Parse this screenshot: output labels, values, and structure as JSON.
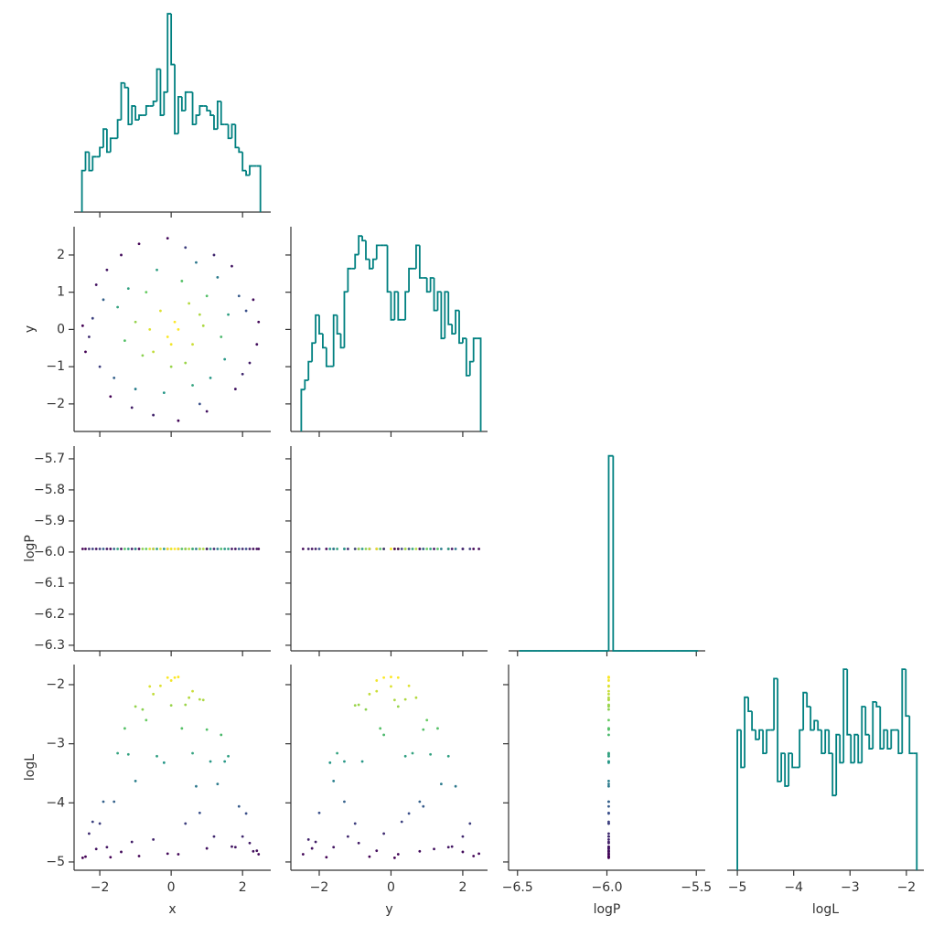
{
  "chart_data": {
    "type": "pairplot",
    "corner": true,
    "color": "#008080",
    "colormap": "viridis",
    "color_by": 3,
    "variables": [
      {
        "name": "x",
        "xlim": [
          -2.72,
          2.79
        ],
        "xticks": [
          {
            "value": -2,
            "label": "−2"
          },
          0,
          2
        ],
        "values": [
          0.1,
          -0.3,
          0.6,
          -0.8,
          1.0,
          -1.2,
          1.5,
          -1.6,
          2.1,
          -2.2,
          0.4,
          -0.5,
          2.4,
          -2.4,
          1.7,
          -1.8,
          1.8,
          -1.7,
          0,
          0.9,
          -1.0,
          0.3,
          1.3,
          -0.2,
          2.0,
          -1.4,
          0.8,
          -2.0,
          1.2,
          -0.9,
          2.45,
          -0.1,
          0.2,
          -2.48,
          0.5,
          -0.6,
          0,
          0.2,
          -0.1,
          1.1,
          -1.3,
          1.6,
          -0.4,
          0.7,
          -1.0,
          1.9,
          -1.9,
          0.6,
          -0.7,
          1.4,
          -1.5,
          2.2,
          -2.1,
          1.0,
          -1.1,
          0.4,
          -0.5,
          0.8,
          2.3,
          -2.3
        ],
        "hist": {
          "ylim": [
            0,
            44
          ],
          "bins": [
            -2.5,
            -2.4,
            -2.3,
            -2.2,
            -2.1,
            -2.0,
            -1.9,
            -1.8,
            -1.7,
            -1.6,
            -1.5,
            -1.4,
            -1.3,
            -1.2,
            -1.1,
            -1.0,
            -0.9,
            -0.8,
            -0.7,
            -0.6,
            -0.5,
            -0.4,
            -0.3,
            -0.2,
            -0.1,
            0,
            0.1,
            0.2,
            0.3,
            0.4,
            0.5,
            0.6,
            0.7,
            0.8,
            0.9,
            1.0,
            1.1,
            1.2,
            1.3,
            1.4,
            1.5,
            1.6,
            1.7,
            1.8,
            1.9,
            2.0,
            2.1,
            2.2,
            2.3,
            2.4,
            2.5
          ],
          "counts": [
            9,
            13,
            9,
            12,
            12,
            14,
            18,
            13,
            16,
            16,
            20,
            28,
            27,
            19,
            23,
            20,
            21,
            21,
            23,
            23,
            24,
            31,
            21,
            26,
            43,
            32,
            17,
            25,
            22,
            26,
            26,
            19,
            21,
            23,
            23,
            22,
            21,
            18,
            24,
            19,
            19,
            16,
            19,
            14,
            13,
            9,
            8,
            10,
            10,
            10
          ]
        }
      },
      {
        "name": "y",
        "xlim": [
          -2.79,
          2.69
        ],
        "xticks": [
          {
            "value": -2,
            "label": "−2"
          },
          0,
          2
        ],
        "ylim": [
          -2.74,
          2.76
        ],
        "yticks": [
          {
            "value": -2,
            "label": "−2"
          },
          {
            "value": -1,
            "label": "−1"
          },
          0,
          1,
          2
        ],
        "values": [
          0.2,
          0.5,
          -0.4,
          -0.7,
          0.9,
          1.1,
          -0.8,
          -1.3,
          0.5,
          0.3,
          2.2,
          -2.3,
          -0.4,
          -0.6,
          1.7,
          1.6,
          -1.6,
          -1.8,
          -1.0,
          0.1,
          0.2,
          1.3,
          1.4,
          -1.7,
          -1.2,
          2.0,
          -2.0,
          -1.0,
          2.0,
          2.3,
          0.2,
          2.45,
          -2.45,
          0.1,
          0.7,
          0,
          -0.4,
          0,
          -0.2,
          -1.3,
          -0.3,
          0.4,
          1.6,
          1.8,
          -1.6,
          0.9,
          0.8,
          -1.5,
          1.0,
          -0.2,
          0.6,
          -0.9,
          1.2,
          -2.2,
          -2.1,
          -0.9,
          -0.6,
          0.4,
          0.8,
          -0.2
        ],
        "hist": {
          "ylim": [
            0,
            44
          ],
          "bins": [
            -2.5,
            -2.4,
            -2.3,
            -2.2,
            -2.1,
            -2.0,
            -1.9,
            -1.8,
            -1.7,
            -1.6,
            -1.5,
            -1.4,
            -1.3,
            -1.2,
            -1.1,
            -1.0,
            -0.9,
            -0.8,
            -0.7,
            -0.6,
            -0.5,
            -0.4,
            -0.3,
            -0.2,
            -0.1,
            0,
            0.1,
            0.2,
            0.3,
            0.4,
            0.5,
            0.6,
            0.7,
            0.8,
            0.9,
            1.0,
            1.1,
            1.2,
            1.3,
            1.4,
            1.5,
            1.6,
            1.7,
            1.8,
            1.9,
            2.0,
            2.1,
            2.2,
            2.3,
            2.4,
            2.5
          ],
          "counts": [
            9,
            11,
            15,
            19,
            25,
            21,
            18,
            14,
            14,
            25,
            21,
            18,
            30,
            35,
            35,
            38,
            42,
            41,
            37,
            35,
            37,
            40,
            40,
            40,
            30,
            24,
            30,
            24,
            24,
            30,
            35,
            35,
            40,
            33,
            33,
            30,
            33,
            26,
            30,
            20,
            30,
            23,
            21,
            26,
            19,
            20,
            12,
            15,
            20,
            20
          ]
        }
      },
      {
        "name": "logP",
        "xlim": [
          -6.55,
          -5.45
        ],
        "xticks": [
          {
            "value": -6.5,
            "label": "−6.5"
          },
          {
            "value": -6.0,
            "label": "−6.0"
          },
          {
            "value": -5.5,
            "label": "−5.5"
          }
        ],
        "ylim": [
          -6.318,
          -5.659
        ],
        "yticks": [
          {
            "value": -5.7,
            "label": "−5.7"
          },
          {
            "value": -5.8,
            "label": "−5.8"
          },
          {
            "value": -5.9,
            "label": "−5.9"
          },
          {
            "value": -6.0,
            "label": "−6.0"
          },
          {
            "value": -6.1,
            "label": "−6.1"
          },
          {
            "value": -6.2,
            "label": "−6.2"
          },
          {
            "value": -6.3,
            "label": "−6.3"
          }
        ],
        "values": [
          -5.99,
          -5.99,
          -5.99,
          -5.99,
          -5.99,
          -5.99,
          -5.99,
          -5.99,
          -5.99,
          -5.99,
          -5.99,
          -5.99,
          -5.99,
          -5.99,
          -5.99,
          -5.99,
          -5.99,
          -5.99,
          -5.99,
          -5.99,
          -5.99,
          -5.99,
          -5.99,
          -5.99,
          -5.99,
          -5.99,
          -5.99,
          -5.99,
          -5.99,
          -5.99,
          -5.99,
          -5.99,
          -5.99,
          -5.99,
          -5.99,
          -5.99,
          -5.99,
          -5.99,
          -5.99,
          -5.99,
          -5.99,
          -5.99,
          -5.99,
          -5.99,
          -5.99,
          -5.99,
          -5.99,
          -5.99,
          -5.99,
          -5.99,
          -5.99,
          -5.99,
          -5.99,
          -5.99,
          -5.99,
          -5.99,
          -5.99,
          -5.99,
          -5.99,
          -5.99
        ],
        "hist": {
          "ylim": [
            0,
            1050
          ],
          "bins": [
            -6.49,
            -6.465,
            -6.44,
            -6.415,
            -6.39,
            -6.365,
            -6.34,
            -6.315,
            -6.29,
            -6.265,
            -6.24,
            -6.215,
            -6.19,
            -6.165,
            -6.14,
            -6.115,
            -6.09,
            -6.065,
            -6.04,
            -6.015,
            -5.99,
            -5.965,
            -5.94,
            -5.915,
            -5.89,
            -5.865,
            -5.84,
            -5.815,
            -5.79,
            -5.765,
            -5.74,
            -5.715,
            -5.69,
            -5.665,
            -5.64,
            -5.615,
            -5.59,
            -5.565,
            -5.54,
            -5.515,
            -5.49
          ],
          "counts": [
            0,
            0,
            0,
            0,
            0,
            0,
            0,
            0,
            0,
            0,
            0,
            0,
            0,
            0,
            0,
            0,
            0,
            0,
            0,
            0,
            1000,
            0,
            0,
            0,
            0,
            0,
            0,
            0,
            0,
            0,
            0,
            0,
            0,
            0,
            0,
            0,
            0,
            0,
            0,
            0
          ]
        }
      },
      {
        "name": "logL",
        "xlim": [
          -5.18,
          -1.69
        ],
        "xticks": [
          {
            "value": -5,
            "label": "−5"
          },
          {
            "value": -4,
            "label": "−4"
          },
          {
            "value": -3,
            "label": "−3"
          },
          {
            "value": -2,
            "label": "−2"
          }
        ],
        "ylim": [
          -5.14,
          -1.66
        ],
        "yticks": [
          {
            "value": -2,
            "label": "−2"
          },
          {
            "value": -3,
            "label": "−3"
          },
          {
            "value": -4,
            "label": "−4"
          },
          {
            "value": -5,
            "label": "−5"
          }
        ],
        "values": [
          -1.88,
          -2.02,
          -2.11,
          -2.42,
          -2.76,
          -3.18,
          -3.3,
          -3.98,
          -4.18,
          -4.32,
          -4.35,
          -4.62,
          -4.81,
          -4.91,
          -4.74,
          -4.75,
          -4.75,
          -4.92,
          -2.35,
          -2.26,
          -2.37,
          -2.74,
          -3.68,
          -3.32,
          -4.57,
          -4.83,
          -4.17,
          -4.35,
          -4.57,
          -4.9,
          -4.87,
          -4.86,
          -4.87,
          -4.93,
          -2.22,
          -2.03,
          -1.93,
          -1.87,
          -1.88,
          -3.3,
          -2.74,
          -3.21,
          -3.21,
          -3.72,
          -3.63,
          -4.06,
          -3.98,
          -3.16,
          -2.6,
          -2.85,
          -3.16,
          -4.68,
          -4.78,
          -4.77,
          -4.66,
          -2.34,
          -2.16,
          -2.25,
          -4.82,
          -4.52
        ],
        "hist": {
          "ylim": [
            0,
            44
          ],
          "bins": [
            -5,
            -4.935,
            -4.87,
            -4.805,
            -4.74,
            -4.675,
            -4.61,
            -4.545,
            -4.48,
            -4.415,
            -4.35,
            -4.285,
            -4.22,
            -4.155,
            -4.09,
            -4.025,
            -3.96,
            -3.895,
            -3.83,
            -3.765,
            -3.7,
            -3.635,
            -3.57,
            -3.505,
            -3.44,
            -3.375,
            -3.31,
            -3.245,
            -3.18,
            -3.115,
            -3.05,
            -2.985,
            -2.92,
            -2.855,
            -2.79,
            -2.725,
            -2.66,
            -2.595,
            -2.53,
            -2.465,
            -2.4,
            -2.335,
            -2.27,
            -2.205,
            -2.14,
            -2.075,
            -2.01,
            -1.945,
            -1.88,
            -1.815
          ],
          "counts": [
            30,
            22,
            37,
            34,
            30,
            28,
            30,
            25,
            30,
            30,
            41,
            19,
            25,
            18,
            25,
            22,
            22,
            30,
            38,
            35,
            30,
            32,
            30,
            25,
            30,
            25,
            16,
            29,
            23,
            43,
            29,
            23,
            29,
            23,
            35,
            29,
            26,
            36,
            35,
            26,
            30,
            26,
            30,
            30,
            25,
            43,
            33,
            25,
            25
          ]
        }
      }
    ]
  }
}
